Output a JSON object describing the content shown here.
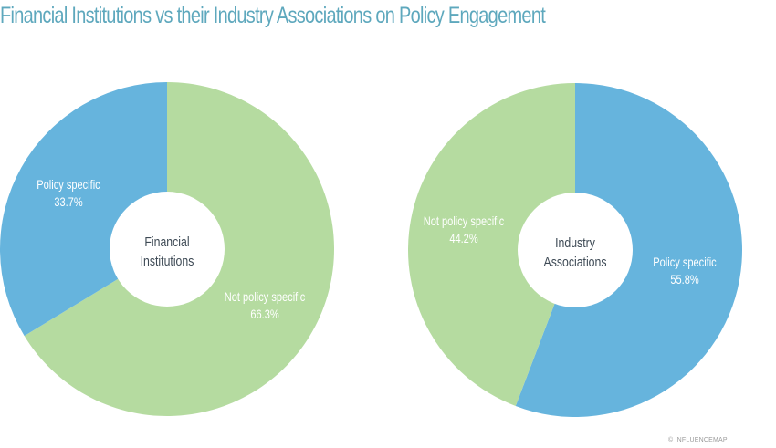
{
  "title": "Financial Institutions vs their Industry Associations on Policy Engagement",
  "credit": "© INFLUENCEMAP",
  "colors": {
    "title": "#5ea8bd",
    "policy_specific": "#66b4dd",
    "not_policy_specific": "#b5dba0",
    "center_text": "#3e4a55",
    "slice_text": "#ffffff"
  },
  "chart_data": [
    {
      "type": "pie",
      "variant": "donut",
      "center_label": [
        "Financial",
        "Institutions"
      ],
      "slices": [
        {
          "label": "Not policy specific",
          "value": 66.3,
          "display": "66.3%",
          "color": "#b5dba0"
        },
        {
          "label": "Policy specific",
          "value": 33.7,
          "display": "33.7%",
          "color": "#66b4dd"
        }
      ]
    },
    {
      "type": "pie",
      "variant": "donut",
      "center_label": [
        "Industry",
        "Associations"
      ],
      "slices": [
        {
          "label": "Policy specific",
          "value": 55.8,
          "display": "55.8%",
          "color": "#66b4dd"
        },
        {
          "label": "Not policy specific",
          "value": 44.2,
          "display": "44.2%",
          "color": "#b5dba0"
        }
      ]
    }
  ]
}
